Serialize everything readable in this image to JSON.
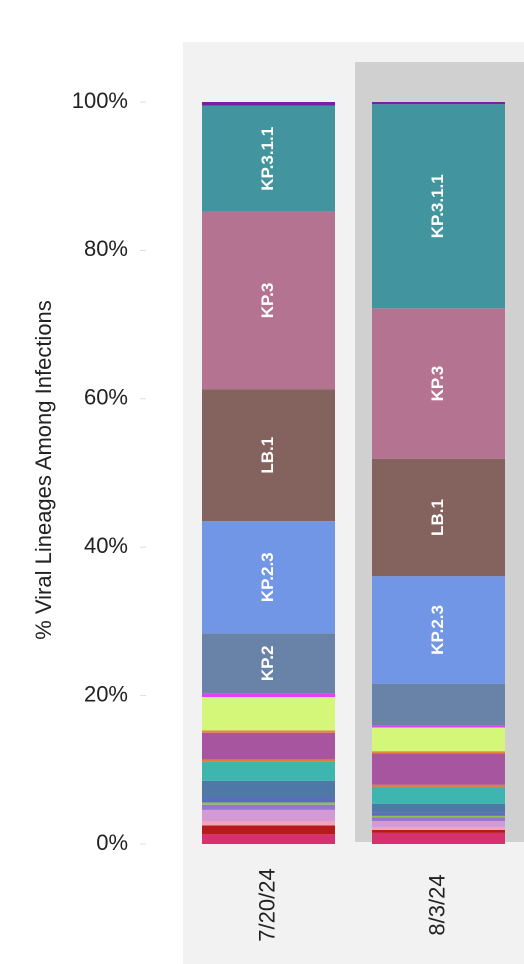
{
  "chart_data": {
    "type": "stacked-bar",
    "y_label": "% Viral Lineages Among Infections",
    "categories": [
      "7/20/24",
      "8/3/24"
    ],
    "ylim": [
      0,
      100
    ],
    "yticks": [
      {
        "value": 0,
        "label": "0%"
      },
      {
        "value": 20,
        "label": "20%"
      },
      {
        "value": 40,
        "label": "40%"
      },
      {
        "value": 60,
        "label": "60%"
      },
      {
        "value": 80,
        "label": "80%"
      },
      {
        "value": 100,
        "label": "100%"
      }
    ],
    "series": [
      {
        "color": "#d6306e",
        "values": [
          1.3,
          1.5
        ]
      },
      {
        "color": "#b71c1c",
        "values": [
          1.2,
          0.4
        ]
      },
      {
        "color": "#f4a3bf",
        "values": [
          0.6,
          0.4
        ]
      },
      {
        "color": "#d39ad6",
        "values": [
          1.5,
          0.8
        ]
      },
      {
        "color": "#9575cd",
        "values": [
          0.7,
          0.5
        ]
      },
      {
        "color": "#8bc34a",
        "values": [
          0.3,
          0.2
        ]
      },
      {
        "color": "#5c6bc0",
        "values": [
          0.6,
          0.4
        ]
      },
      {
        "color": "#4e79a7",
        "values": [
          2.3,
          1.2
        ]
      },
      {
        "color": "#3fb5b0",
        "values": [
          2.6,
          2.3
        ]
      },
      {
        "color": "#e07b39",
        "values": [
          0.3,
          0.3
        ]
      },
      {
        "color": "#a855a0",
        "values": [
          3.6,
          4.2
        ]
      },
      {
        "color": "#e8863a",
        "values": [
          0.3,
          0.3
        ]
      },
      {
        "color": "#d4f77a",
        "values": [
          4.5,
          3.2
        ]
      },
      {
        "color": "#e040fb",
        "values": [
          0.5,
          0.3
        ]
      },
      {
        "name": "KP.2",
        "color": "#6882a8",
        "values": [
          8.1,
          5.6
        ]
      },
      {
        "name": "KP.2.3",
        "color": "#7196e6",
        "values": [
          15.1,
          14.5
        ]
      },
      {
        "name": "LB.1",
        "color": "#84635e",
        "values": [
          17.8,
          15.8
        ]
      },
      {
        "name": "KP.3",
        "color": "#b47390",
        "values": [
          23.9,
          20.3
        ]
      },
      {
        "name": "KP.3.1.1",
        "color": "#42959e",
        "values": [
          14.3,
          27.5
        ]
      },
      {
        "color": "#7b1fa2",
        "values": [
          0.5,
          0.3
        ]
      }
    ]
  }
}
